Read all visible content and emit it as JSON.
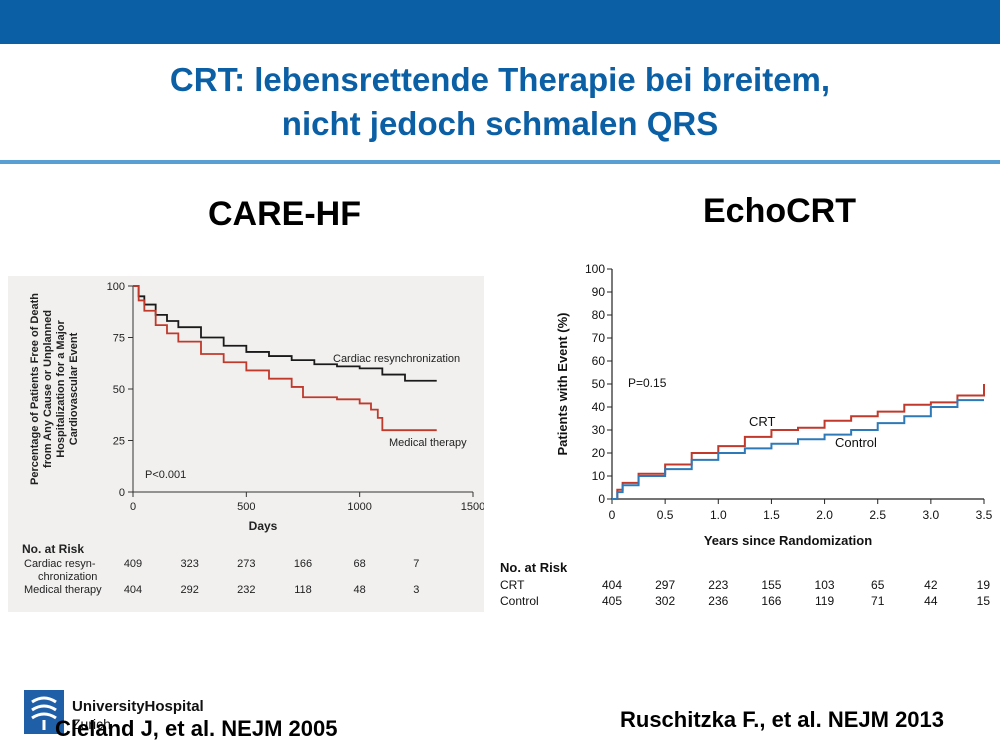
{
  "slide": {
    "title_line1": "CRT: lebensrettende Therapie bei breitem,",
    "title_line2": "nicht jedoch schmalen QRS",
    "left_heading": "CARE-HF",
    "right_heading": "EchoCRT",
    "left_citation": "Cleland J, et al. NEJM 2005",
    "right_citation": "Ruschitzka F., et al. NEJM 2013",
    "logo_name": "UniversityHospital",
    "logo_sub": "Zurich",
    "logo_icon": "hospital-logo-icon",
    "colors": {
      "brand_blue": "#0b5fa5",
      "rule_blue": "#5a9fd4"
    }
  },
  "chart_data": [
    {
      "type": "line",
      "title": "",
      "ylabel_lines": [
        "Percentage of Patients Free of Death",
        "from Any Cause or Unplanned",
        "Hospitalization for a Major",
        "Cardiovascular Event"
      ],
      "xlabel": "Days",
      "xlim": [
        0,
        1500
      ],
      "ylim": [
        0,
        100
      ],
      "x_ticks": [
        "0",
        "500",
        "1000",
        "1500"
      ],
      "y_ticks": [
        "0",
        "25",
        "50",
        "75",
        "100"
      ],
      "annotation": "P<0.001",
      "series": [
        {
          "name": "Cardiac resynchronization",
          "color": "#1a1a1a",
          "x": [
            0,
            25,
            50,
            100,
            150,
            200,
            300,
            400,
            500,
            600,
            700,
            800,
            900,
            1000,
            1060,
            1100,
            1150,
            1200,
            1300,
            1340
          ],
          "y": [
            100,
            95,
            91,
            86,
            83,
            80,
            75,
            71,
            68,
            66,
            64,
            62,
            61,
            60,
            60,
            57,
            57,
            54,
            54,
            54
          ]
        },
        {
          "name": "Medical therapy",
          "color": "#c0392b",
          "x": [
            0,
            25,
            50,
            100,
            150,
            200,
            300,
            400,
            500,
            600,
            700,
            750,
            800,
            900,
            1000,
            1050,
            1080,
            1100,
            1200,
            1340
          ],
          "y": [
            100,
            93,
            88,
            81,
            77,
            73,
            67,
            63,
            59,
            55,
            51,
            46,
            46,
            45,
            43,
            40,
            36,
            30,
            30,
            30
          ]
        }
      ],
      "risk_table": {
        "header": "No. at Risk",
        "rows": [
          {
            "label_lines": [
              "Cardiac resyn-",
              "chronization"
            ],
            "values": [
              "409",
              "323",
              "273",
              "166",
              "68",
              "7"
            ]
          },
          {
            "label_lines": [
              "Medical therapy"
            ],
            "values": [
              "404",
              "292",
              "232",
              "118",
              "48",
              "3"
            ]
          }
        ]
      }
    },
    {
      "type": "line",
      "title": "",
      "ylabel": "Patients with Event (%)",
      "xlabel": "Years since Randomization",
      "xlim": [
        0,
        3.5
      ],
      "ylim": [
        0,
        100
      ],
      "x_ticks": [
        "0",
        "0.5",
        "1.0",
        "1.5",
        "2.0",
        "2.5",
        "3.0",
        "3.5"
      ],
      "y_ticks": [
        "0",
        "10",
        "20",
        "30",
        "40",
        "50",
        "60",
        "70",
        "80",
        "90",
        "100"
      ],
      "annotation": "P=0.15",
      "series": [
        {
          "name": "CRT",
          "color": "#c0392b",
          "x": [
            0,
            0.05,
            0.1,
            0.25,
            0.5,
            0.75,
            1.0,
            1.25,
            1.5,
            1.75,
            2.0,
            2.25,
            2.5,
            2.75,
            3.0,
            3.25,
            3.5
          ],
          "y": [
            0,
            4,
            7,
            11,
            15,
            20,
            23,
            27,
            30,
            31,
            34,
            36,
            38,
            41,
            42,
            45,
            50
          ]
        },
        {
          "name": "Control",
          "color": "#2e7ab8",
          "x": [
            0,
            0.05,
            0.1,
            0.25,
            0.5,
            0.75,
            1.0,
            1.25,
            1.5,
            1.75,
            2.0,
            2.25,
            2.5,
            2.75,
            3.0,
            3.25,
            3.5
          ],
          "y": [
            0,
            3,
            6,
            10,
            13,
            17,
            20,
            22,
            24,
            26,
            28,
            30,
            33,
            36,
            40,
            43,
            43
          ]
        }
      ],
      "risk_table": {
        "header": "No. at Risk",
        "rows": [
          {
            "label": "CRT",
            "values": [
              "404",
              "297",
              "223",
              "155",
              "103",
              "65",
              "42",
              "19"
            ]
          },
          {
            "label": "Control",
            "values": [
              "405",
              "302",
              "236",
              "166",
              "119",
              "71",
              "44",
              "15"
            ]
          }
        ]
      }
    }
  ]
}
